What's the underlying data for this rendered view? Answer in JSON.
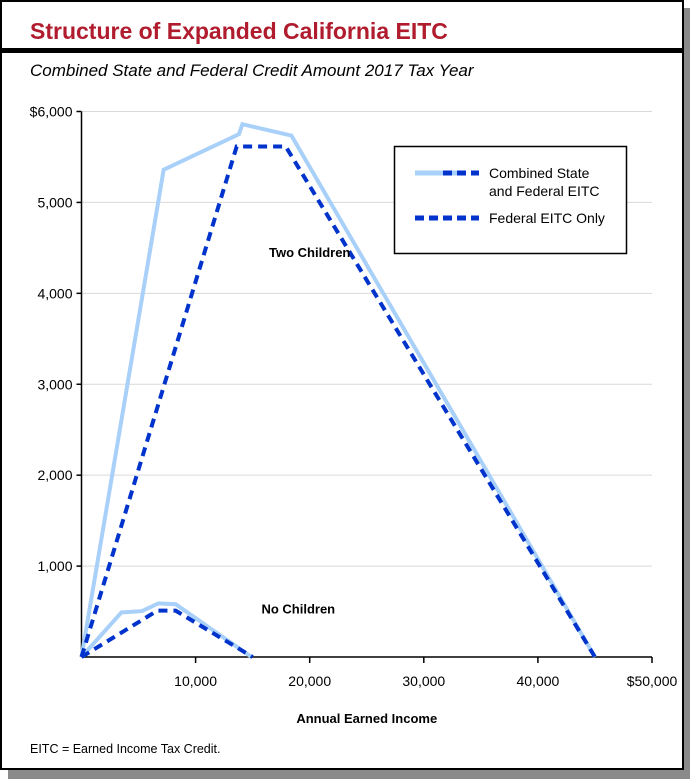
{
  "header": {
    "title": "Structure of Expanded California EITC",
    "subtitle": "Combined State and Federal Credit Amount 2017 Tax Year"
  },
  "footnote": "EITC = Earned Income Tax Credit.",
  "chart_data": {
    "type": "line",
    "title": "Structure of Expanded California EITC",
    "subtitle": "Combined State and Federal Credit Amount 2017 Tax Year",
    "xlabel": "Annual Earned Income",
    "ylabel": "",
    "xlim": [
      0,
      50000
    ],
    "ylim": [
      0,
      6000
    ],
    "xticks": [
      10000,
      20000,
      30000,
      40000,
      50000
    ],
    "xtick_labels": [
      "10,000",
      "20,000",
      "30,000",
      "40,000",
      "$50,000"
    ],
    "yticks": [
      1000,
      2000,
      3000,
      4000,
      5000,
      6000
    ],
    "ytick_labels": [
      "1,000",
      "2,000",
      "3,000",
      "4,000",
      "5,000",
      "$6,000"
    ],
    "grid": "horizontal",
    "legend_position": "top-right",
    "legend": [
      {
        "label_lines": [
          "Combined State",
          "and Federal EITC"
        ],
        "style": "combined"
      },
      {
        "label_lines": [
          "Federal EITC Only"
        ],
        "style": "federal"
      }
    ],
    "annotations": [
      {
        "text": "Two Children",
        "x": 20000,
        "y": 4400
      },
      {
        "text": "No Children",
        "x": 19000,
        "y": 480
      }
    ],
    "colors": {
      "combined": "#a8d0f8",
      "federal": "#0033cc",
      "title": "#b01c2e",
      "grid": "#d9d9d9"
    },
    "series": [
      {
        "name": "Combined State and Federal EITC",
        "group": "Two Children",
        "style": "combined",
        "points": [
          [
            0,
            0
          ],
          [
            7200,
            5360
          ],
          [
            13800,
            5750
          ],
          [
            14100,
            5860
          ],
          [
            18400,
            5735
          ],
          [
            45000,
            0
          ]
        ]
      },
      {
        "name": "Federal EITC Only",
        "group": "Two Children",
        "style": "federal",
        "points": [
          [
            0,
            0
          ],
          [
            13600,
            5615
          ],
          [
            17900,
            5615
          ],
          [
            45000,
            0
          ]
        ]
      },
      {
        "name": "Combined State and Federal EITC",
        "group": "No Children",
        "style": "combined",
        "points": [
          [
            0,
            0
          ],
          [
            3500,
            490
          ],
          [
            5300,
            505
          ],
          [
            6750,
            590
          ],
          [
            8250,
            580
          ],
          [
            14900,
            0
          ]
        ]
      },
      {
        "name": "Federal EITC Only",
        "group": "No Children",
        "style": "federal",
        "points": [
          [
            0,
            0
          ],
          [
            6650,
            510
          ],
          [
            8250,
            510
          ],
          [
            15000,
            0
          ]
        ]
      }
    ]
  }
}
